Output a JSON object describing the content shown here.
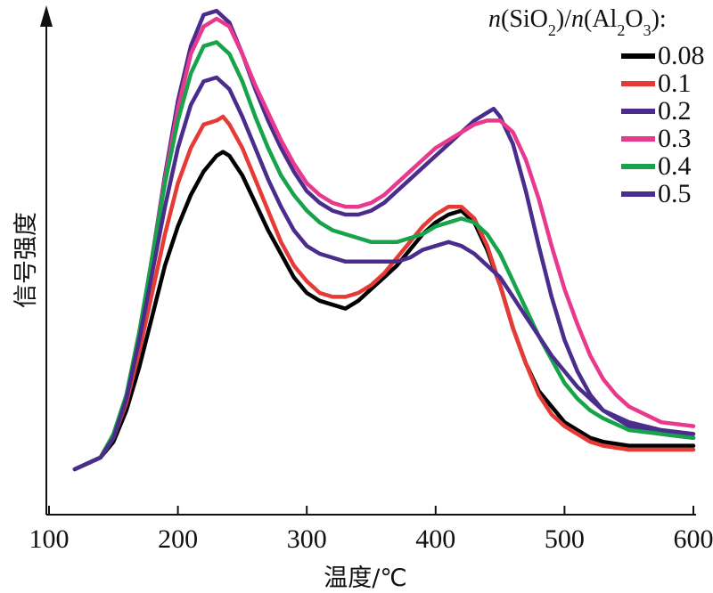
{
  "chart_data": {
    "type": "line",
    "title": "",
    "xlabel": "温度/℃",
    "ylabel": "信号强度",
    "xlim": [
      100,
      600
    ],
    "x_ticks": [
      "100",
      "200",
      "300",
      "400",
      "500",
      "600"
    ],
    "y_ticks_shown": false,
    "grid": false,
    "legend_title": {
      "parts": [
        {
          "t": "n",
          "s": "italic"
        },
        {
          "t": "(SiO",
          "s": "normal"
        },
        {
          "t": "2",
          "s": "sub"
        },
        {
          "t": ")/",
          "s": "normal"
        },
        {
          "t": "n",
          "s": "italic"
        },
        {
          "t": "(Al",
          "s": "normal"
        },
        {
          "t": "2",
          "s": "sub"
        },
        {
          "t": "O",
          "s": "normal"
        },
        {
          "t": "3",
          "s": "sub"
        },
        {
          "t": "):",
          "s": "normal"
        }
      ]
    },
    "legend_position": "top-right",
    "series": [
      {
        "name": "0.08",
        "color": "#000000",
        "points": [
          [
            120,
            0.0
          ],
          [
            140,
            0.03
          ],
          [
            150,
            0.07
          ],
          [
            160,
            0.15
          ],
          [
            170,
            0.26
          ],
          [
            180,
            0.39
          ],
          [
            190,
            0.52
          ],
          [
            200,
            0.62
          ],
          [
            210,
            0.7
          ],
          [
            220,
            0.76
          ],
          [
            230,
            0.8
          ],
          [
            235,
            0.81
          ],
          [
            240,
            0.8
          ],
          [
            250,
            0.75
          ],
          [
            260,
            0.68
          ],
          [
            270,
            0.61
          ],
          [
            280,
            0.55
          ],
          [
            290,
            0.49
          ],
          [
            300,
            0.45
          ],
          [
            310,
            0.43
          ],
          [
            320,
            0.42
          ],
          [
            330,
            0.41
          ],
          [
            340,
            0.43
          ],
          [
            350,
            0.46
          ],
          [
            360,
            0.49
          ],
          [
            370,
            0.52
          ],
          [
            380,
            0.56
          ],
          [
            390,
            0.6
          ],
          [
            400,
            0.63
          ],
          [
            410,
            0.65
          ],
          [
            420,
            0.66
          ],
          [
            430,
            0.63
          ],
          [
            440,
            0.56
          ],
          [
            450,
            0.47
          ],
          [
            460,
            0.36
          ],
          [
            470,
            0.27
          ],
          [
            480,
            0.2
          ],
          [
            490,
            0.16
          ],
          [
            500,
            0.12
          ],
          [
            510,
            0.1
          ],
          [
            520,
            0.08
          ],
          [
            530,
            0.07
          ],
          [
            550,
            0.06
          ],
          [
            575,
            0.06
          ],
          [
            600,
            0.06
          ]
        ]
      },
      {
        "name": "0.1",
        "color": "#e53a36",
        "points": [
          [
            120,
            0.0
          ],
          [
            140,
            0.03
          ],
          [
            150,
            0.08
          ],
          [
            160,
            0.17
          ],
          [
            170,
            0.3
          ],
          [
            180,
            0.45
          ],
          [
            190,
            0.6
          ],
          [
            200,
            0.73
          ],
          [
            210,
            0.82
          ],
          [
            220,
            0.88
          ],
          [
            230,
            0.89
          ],
          [
            235,
            0.9
          ],
          [
            240,
            0.88
          ],
          [
            250,
            0.82
          ],
          [
            260,
            0.74
          ],
          [
            270,
            0.66
          ],
          [
            280,
            0.58
          ],
          [
            290,
            0.52
          ],
          [
            300,
            0.48
          ],
          [
            310,
            0.45
          ],
          [
            320,
            0.44
          ],
          [
            330,
            0.44
          ],
          [
            340,
            0.45
          ],
          [
            350,
            0.47
          ],
          [
            360,
            0.5
          ],
          [
            370,
            0.54
          ],
          [
            380,
            0.58
          ],
          [
            390,
            0.62
          ],
          [
            400,
            0.65
          ],
          [
            410,
            0.67
          ],
          [
            420,
            0.67
          ],
          [
            430,
            0.64
          ],
          [
            440,
            0.57
          ],
          [
            450,
            0.47
          ],
          [
            460,
            0.36
          ],
          [
            470,
            0.27
          ],
          [
            480,
            0.19
          ],
          [
            490,
            0.14
          ],
          [
            500,
            0.11
          ],
          [
            510,
            0.09
          ],
          [
            520,
            0.07
          ],
          [
            530,
            0.06
          ],
          [
            550,
            0.05
          ],
          [
            575,
            0.05
          ],
          [
            600,
            0.05
          ]
        ]
      },
      {
        "name": "0.2",
        "color": "#4a2c8c",
        "points": [
          [
            120,
            0.0
          ],
          [
            140,
            0.03
          ],
          [
            150,
            0.08
          ],
          [
            160,
            0.18
          ],
          [
            170,
            0.34
          ],
          [
            180,
            0.54
          ],
          [
            190,
            0.75
          ],
          [
            200,
            0.94
          ],
          [
            210,
            1.08
          ],
          [
            220,
            1.16
          ],
          [
            230,
            1.17
          ],
          [
            240,
            1.14
          ],
          [
            250,
            1.06
          ],
          [
            260,
            0.97
          ],
          [
            270,
            0.89
          ],
          [
            280,
            0.82
          ],
          [
            290,
            0.76
          ],
          [
            300,
            0.71
          ],
          [
            310,
            0.68
          ],
          [
            320,
            0.66
          ],
          [
            330,
            0.65
          ],
          [
            340,
            0.65
          ],
          [
            350,
            0.66
          ],
          [
            360,
            0.68
          ],
          [
            370,
            0.71
          ],
          [
            380,
            0.74
          ],
          [
            390,
            0.77
          ],
          [
            400,
            0.8
          ],
          [
            410,
            0.83
          ],
          [
            420,
            0.86
          ],
          [
            430,
            0.89
          ],
          [
            440,
            0.91
          ],
          [
            445,
            0.92
          ],
          [
            450,
            0.9
          ],
          [
            460,
            0.83
          ],
          [
            470,
            0.71
          ],
          [
            480,
            0.57
          ],
          [
            490,
            0.44
          ],
          [
            500,
            0.33
          ],
          [
            510,
            0.25
          ],
          [
            520,
            0.19
          ],
          [
            530,
            0.15
          ],
          [
            550,
            0.11
          ],
          [
            575,
            0.09
          ],
          [
            600,
            0.08
          ]
        ]
      },
      {
        "name": "0.3",
        "color": "#e8398f",
        "points": [
          [
            120,
            0.0
          ],
          [
            140,
            0.03
          ],
          [
            150,
            0.08
          ],
          [
            160,
            0.18
          ],
          [
            170,
            0.34
          ],
          [
            180,
            0.54
          ],
          [
            190,
            0.74
          ],
          [
            200,
            0.92
          ],
          [
            210,
            1.06
          ],
          [
            220,
            1.13
          ],
          [
            230,
            1.15
          ],
          [
            240,
            1.13
          ],
          [
            250,
            1.06
          ],
          [
            260,
            0.98
          ],
          [
            270,
            0.91
          ],
          [
            280,
            0.84
          ],
          [
            290,
            0.78
          ],
          [
            300,
            0.73
          ],
          [
            310,
            0.7
          ],
          [
            320,
            0.68
          ],
          [
            330,
            0.67
          ],
          [
            340,
            0.67
          ],
          [
            350,
            0.68
          ],
          [
            360,
            0.7
          ],
          [
            370,
            0.73
          ],
          [
            380,
            0.76
          ],
          [
            390,
            0.79
          ],
          [
            400,
            0.82
          ],
          [
            410,
            0.84
          ],
          [
            420,
            0.86
          ],
          [
            430,
            0.88
          ],
          [
            440,
            0.89
          ],
          [
            450,
            0.89
          ],
          [
            460,
            0.86
          ],
          [
            470,
            0.79
          ],
          [
            480,
            0.69
          ],
          [
            490,
            0.57
          ],
          [
            500,
            0.46
          ],
          [
            510,
            0.37
          ],
          [
            520,
            0.29
          ],
          [
            530,
            0.23
          ],
          [
            540,
            0.19
          ],
          [
            550,
            0.16
          ],
          [
            575,
            0.12
          ],
          [
            600,
            0.11
          ]
        ]
      },
      {
        "name": "0.4",
        "color": "#17a34a",
        "points": [
          [
            120,
            0.0
          ],
          [
            140,
            0.03
          ],
          [
            150,
            0.09
          ],
          [
            160,
            0.19
          ],
          [
            170,
            0.35
          ],
          [
            180,
            0.54
          ],
          [
            190,
            0.73
          ],
          [
            200,
            0.89
          ],
          [
            210,
            1.01
          ],
          [
            220,
            1.08
          ],
          [
            230,
            1.09
          ],
          [
            240,
            1.06
          ],
          [
            250,
            0.99
          ],
          [
            260,
            0.9
          ],
          [
            270,
            0.82
          ],
          [
            280,
            0.75
          ],
          [
            290,
            0.7
          ],
          [
            300,
            0.66
          ],
          [
            310,
            0.63
          ],
          [
            320,
            0.61
          ],
          [
            330,
            0.6
          ],
          [
            340,
            0.59
          ],
          [
            350,
            0.58
          ],
          [
            360,
            0.58
          ],
          [
            370,
            0.58
          ],
          [
            380,
            0.59
          ],
          [
            390,
            0.6
          ],
          [
            400,
            0.62
          ],
          [
            410,
            0.63
          ],
          [
            420,
            0.64
          ],
          [
            430,
            0.63
          ],
          [
            440,
            0.6
          ],
          [
            450,
            0.55
          ],
          [
            460,
            0.48
          ],
          [
            470,
            0.41
          ],
          [
            480,
            0.34
          ],
          [
            490,
            0.28
          ],
          [
            500,
            0.22
          ],
          [
            510,
            0.18
          ],
          [
            520,
            0.15
          ],
          [
            530,
            0.13
          ],
          [
            550,
            0.1
          ],
          [
            575,
            0.09
          ],
          [
            600,
            0.08
          ]
        ]
      },
      {
        "name": "0.5",
        "color": "#4a2c8c",
        "points": [
          [
            120,
            0.0
          ],
          [
            140,
            0.03
          ],
          [
            150,
            0.08
          ],
          [
            160,
            0.18
          ],
          [
            170,
            0.33
          ],
          [
            180,
            0.5
          ],
          [
            190,
            0.67
          ],
          [
            200,
            0.82
          ],
          [
            210,
            0.93
          ],
          [
            220,
            0.99
          ],
          [
            230,
            1.0
          ],
          [
            240,
            0.97
          ],
          [
            250,
            0.9
          ],
          [
            260,
            0.82
          ],
          [
            270,
            0.74
          ],
          [
            280,
            0.67
          ],
          [
            290,
            0.61
          ],
          [
            300,
            0.57
          ],
          [
            310,
            0.55
          ],
          [
            320,
            0.54
          ],
          [
            330,
            0.53
          ],
          [
            340,
            0.53
          ],
          [
            350,
            0.53
          ],
          [
            360,
            0.53
          ],
          [
            370,
            0.53
          ],
          [
            380,
            0.54
          ],
          [
            390,
            0.56
          ],
          [
            400,
            0.57
          ],
          [
            410,
            0.58
          ],
          [
            420,
            0.57
          ],
          [
            430,
            0.55
          ],
          [
            440,
            0.52
          ],
          [
            450,
            0.49
          ],
          [
            460,
            0.44
          ],
          [
            470,
            0.39
          ],
          [
            480,
            0.34
          ],
          [
            490,
            0.29
          ],
          [
            500,
            0.25
          ],
          [
            510,
            0.21
          ],
          [
            520,
            0.18
          ],
          [
            530,
            0.15
          ],
          [
            550,
            0.12
          ],
          [
            575,
            0.1
          ],
          [
            600,
            0.09
          ]
        ]
      }
    ]
  }
}
